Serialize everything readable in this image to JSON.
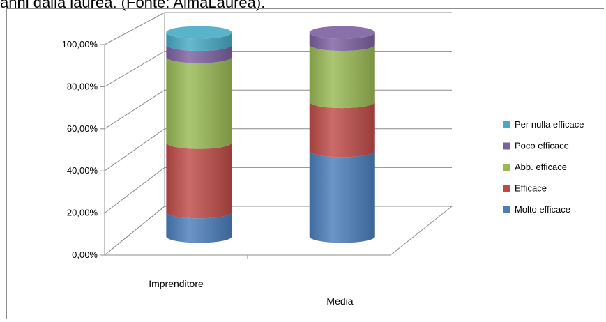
{
  "caption": "anni dalla laurea. (Fonte: AlmaLaurea).",
  "chart_data": {
    "type": "bar",
    "stacked": true,
    "three_d": "cylinder",
    "categories": [
      "Imprenditore",
      "Media"
    ],
    "y_ticks": [
      "0,00%",
      "20,00%",
      "40,00%",
      "60,00%",
      "80,00%",
      "100,00%"
    ],
    "ylim": [
      0,
      100
    ],
    "grid": true,
    "legend_position": "right",
    "series": [
      {
        "name": "Molto efficace",
        "color": "#4a7ebb",
        "values": [
          12,
          42
        ]
      },
      {
        "name": "Efficace",
        "color": "#be4b48",
        "values": [
          34,
          24
        ]
      },
      {
        "name": "Abb. efficace",
        "color": "#98b954",
        "values": [
          42,
          28
        ]
      },
      {
        "name": "Poco efficace",
        "color": "#7d60a0",
        "values": [
          6,
          6
        ]
      },
      {
        "name": "Per nulla efficace",
        "color": "#46aac5",
        "values": [
          6,
          0
        ]
      }
    ]
  }
}
